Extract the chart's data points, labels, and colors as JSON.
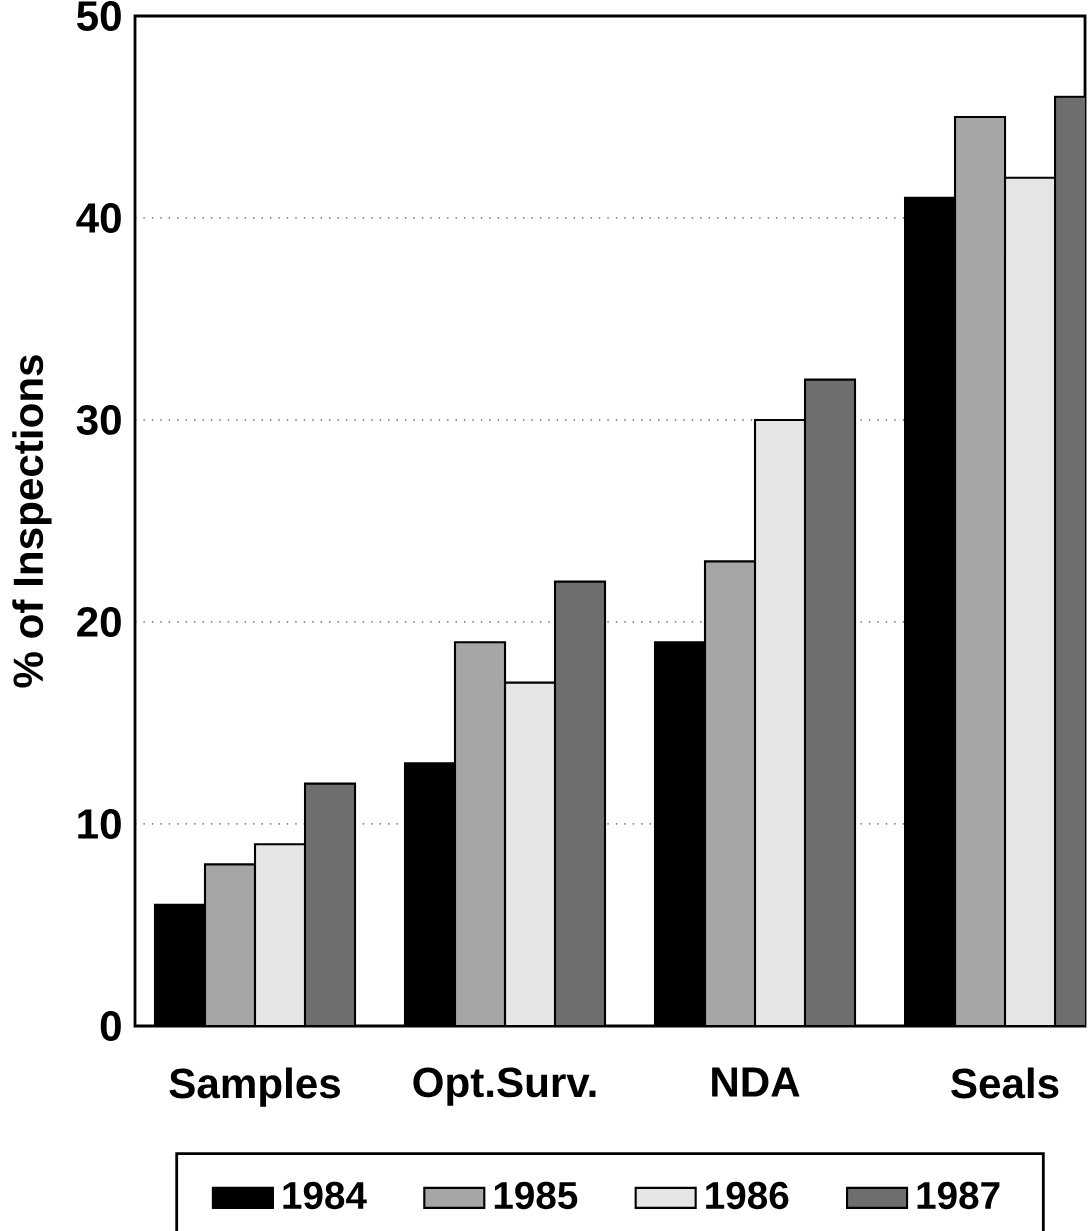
{
  "chart_data": {
    "type": "bar",
    "ylabel": "% of Inspections",
    "categories": [
      "Samples",
      "Opt.Surv.",
      "NDA",
      "Seals"
    ],
    "series": [
      {
        "name": "1984",
        "color": "#000000",
        "values": [
          6,
          13,
          19,
          41
        ]
      },
      {
        "name": "1985",
        "color": "#a6a6a6",
        "values": [
          8,
          19,
          23,
          45
        ]
      },
      {
        "name": "1986",
        "color": "#e6e6e6",
        "values": [
          9,
          17,
          30,
          42
        ]
      },
      {
        "name": "1987",
        "color": "#6e6e6e",
        "values": [
          12,
          22,
          32,
          46
        ]
      }
    ],
    "ylim": [
      0,
      50
    ],
    "yticks": [
      0,
      10,
      20,
      30,
      40,
      50
    ],
    "grid": "y",
    "legend": "bottom"
  }
}
